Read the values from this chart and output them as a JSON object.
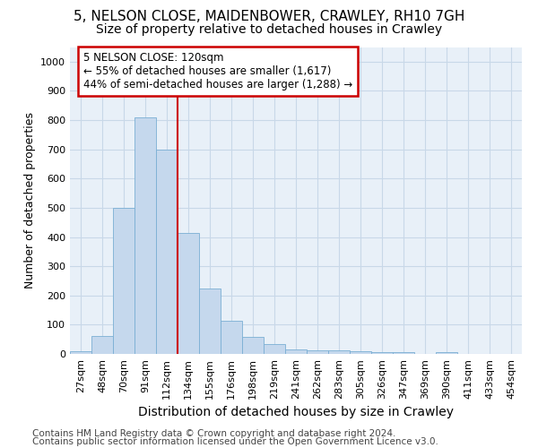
{
  "title1": "5, NELSON CLOSE, MAIDENBOWER, CRAWLEY, RH10 7GH",
  "title2": "Size of property relative to detached houses in Crawley",
  "xlabel": "Distribution of detached houses by size in Crawley",
  "ylabel": "Number of detached properties",
  "categories": [
    "27sqm",
    "48sqm",
    "70sqm",
    "91sqm",
    "112sqm",
    "134sqm",
    "155sqm",
    "176sqm",
    "198sqm",
    "219sqm",
    "241sqm",
    "262sqm",
    "283sqm",
    "305sqm",
    "326sqm",
    "347sqm",
    "369sqm",
    "390sqm",
    "411sqm",
    "433sqm",
    "454sqm"
  ],
  "values": [
    8,
    60,
    500,
    810,
    700,
    415,
    225,
    112,
    57,
    33,
    15,
    12,
    11,
    10,
    7,
    5,
    0,
    7,
    0,
    0,
    0
  ],
  "bar_color": "#c5d8ed",
  "bar_edge_color": "#7aafd4",
  "vline_index": 4,
  "annotation_line1": "5 NELSON CLOSE: 120sqm",
  "annotation_line2": "← 55% of detached houses are smaller (1,617)",
  "annotation_line3": "44% of semi-detached houses are larger (1,288) →",
  "annotation_box_color": "white",
  "annotation_box_edge_color": "#cc0000",
  "footer1": "Contains HM Land Registry data © Crown copyright and database right 2024.",
  "footer2": "Contains public sector information licensed under the Open Government Licence v3.0.",
  "ylim": [
    0,
    1050
  ],
  "yticks": [
    0,
    100,
    200,
    300,
    400,
    500,
    600,
    700,
    800,
    900,
    1000
  ],
  "bg_color": "#ffffff",
  "plot_bg_color": "#e8f0f8",
  "vline_color": "#cc0000",
  "title1_fontsize": 11,
  "title2_fontsize": 10,
  "xlabel_fontsize": 10,
  "ylabel_fontsize": 9,
  "tick_fontsize": 8,
  "annotation_fontsize": 8.5,
  "footer_fontsize": 7.5
}
